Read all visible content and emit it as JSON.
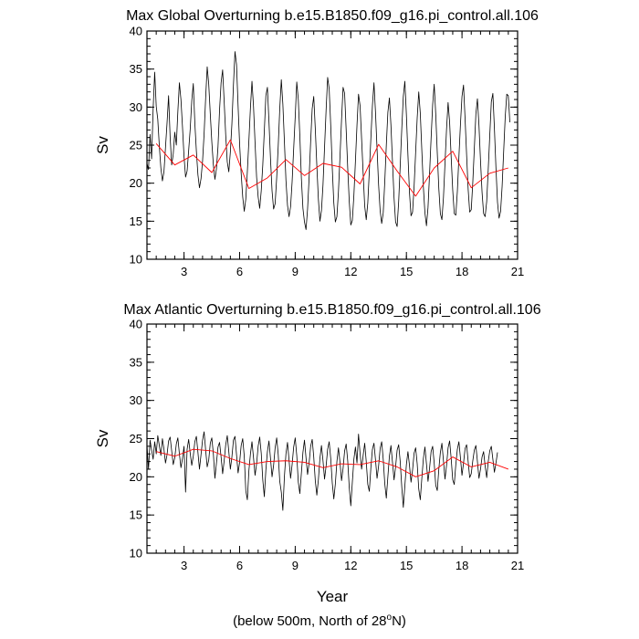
{
  "chart_data": [
    {
      "type": "line",
      "title": "Max Global Overturning b.e15.B1850.f09_g16.pi_control.all.106",
      "xlabel": "",
      "ylabel": "Sv",
      "xlim": [
        1,
        21
      ],
      "ylim": [
        10,
        40
      ],
      "xticks": [
        3,
        6,
        9,
        12,
        15,
        18,
        21
      ],
      "yticks": [
        10,
        15,
        20,
        25,
        30,
        35,
        40
      ],
      "series": [
        {
          "name": "monthly",
          "color": "#000000",
          "x_start": 1.0,
          "x_step": 0.08333,
          "values": [
            22.6,
            21.8,
            26.4,
            23.2,
            29.8,
            34.6,
            30.1,
            28.4,
            24.9,
            22.0,
            20.3,
            21.5,
            24.7,
            27.9,
            31.5,
            26.1,
            22.4,
            23.8,
            26.7,
            25.0,
            29.4,
            33.2,
            31.0,
            27.4,
            23.5,
            20.8,
            21.6,
            24.3,
            27.1,
            30.8,
            33.1,
            27.9,
            24.2,
            21.1,
            19.4,
            20.6,
            22.9,
            26.5,
            31.2,
            35.3,
            33.0,
            29.1,
            25.4,
            22.4,
            20.5,
            21.9,
            24.8,
            29.6,
            33.2,
            34.9,
            30.7,
            26.3,
            22.8,
            21.5,
            24.1,
            27.8,
            32.9,
            37.3,
            35.6,
            30.2,
            25.1,
            21.3,
            18.2,
            16.3,
            17.9,
            21.5,
            25.6,
            29.9,
            33.4,
            30.1,
            25.3,
            20.8,
            18.2,
            16.7,
            19.0,
            22.4,
            26.9,
            31.5,
            32.6,
            28.1,
            23.2,
            19.0,
            16.6,
            17.3,
            20.7,
            24.9,
            29.8,
            33.6,
            30.4,
            25.5,
            20.4,
            17.1,
            15.6,
            16.9,
            20.2,
            24.5,
            28.7,
            33.3,
            31.0,
            26.2,
            20.6,
            16.7,
            14.9,
            13.9,
            16.6,
            20.7,
            25.5,
            29.8,
            31.4,
            27.2,
            22.3,
            17.9,
            15.0,
            16.4,
            19.8,
            24.7,
            29.6,
            33.9,
            32.4,
            27.6,
            22.0,
            17.4,
            14.9,
            15.6,
            18.9,
            23.5,
            28.3,
            32.6,
            31.8,
            27.0,
            22.0,
            17.6,
            14.5,
            15.1,
            18.4,
            22.9,
            27.6,
            31.7,
            30.2,
            25.8,
            21.3,
            17.0,
            15.2,
            17.4,
            21.6,
            25.9,
            30.2,
            33.2,
            29.3,
            24.5,
            19.8,
            16.4,
            14.7,
            16.1,
            20.2,
            25.0,
            29.3,
            31.2,
            27.6,
            22.8,
            18.1,
            14.9,
            14.3,
            17.6,
            22.3,
            27.1,
            31.4,
            33.4,
            29.0,
            23.7,
            18.8,
            15.7,
            16.2,
            19.6,
            24.1,
            28.6,
            32.0,
            29.2,
            24.3,
            19.5,
            16.1,
            14.4,
            16.8,
            21.2,
            25.9,
            30.3,
            33.0,
            29.1,
            24.0,
            19.3,
            16.0,
            15.2,
            18.1,
            22.6,
            27.1,
            30.6,
            28.0,
            23.4,
            19.1,
            16.0,
            15.8,
            18.9,
            23.4,
            27.7,
            31.4,
            32.9,
            28.5,
            23.7,
            19.2,
            16.2,
            16.5,
            20.1,
            24.6,
            29.1,
            31.1,
            27.6,
            22.9,
            18.8,
            16.0,
            15.6,
            17.6,
            21.8,
            26.3,
            30.7,
            31.8,
            27.2,
            22.0,
            17.5,
            15.4,
            16.3,
            19.6,
            24.2,
            28.7,
            31.7,
            31.5,
            28.0
          ]
        },
        {
          "name": "annual mean",
          "color": "#ff0000",
          "x": [
            1.5,
            2.5,
            3.5,
            4.5,
            5.5,
            6.5,
            7.5,
            8.5,
            9.5,
            10.5,
            11.5,
            12.5,
            13.5,
            14.5,
            15.5,
            16.5,
            17.5,
            18.5,
            19.5,
            20.5
          ],
          "values": [
            25.2,
            22.4,
            23.7,
            21.4,
            25.7,
            19.3,
            20.7,
            23.1,
            21.0,
            22.6,
            22.1,
            19.9,
            25.1,
            21.6,
            18.3,
            22.0,
            24.2,
            19.4,
            21.3,
            22.0
          ]
        }
      ]
    },
    {
      "type": "line",
      "title": "Max Atlantic Overturning b.e15.B1850.f09_g16.pi_control.all.106",
      "xlabel": "Year",
      "ylabel": "Sv",
      "xlim": [
        1,
        21
      ],
      "ylim": [
        10,
        40
      ],
      "xticks": [
        3,
        6,
        9,
        12,
        15,
        18,
        21
      ],
      "yticks": [
        10,
        15,
        20,
        25,
        30,
        35,
        40
      ],
      "series": [
        {
          "name": "monthly",
          "color": "#000000",
          "x_start": 1.0,
          "x_step": 0.08333,
          "values": [
            24.2,
            21.0,
            24.8,
            23.5,
            22.3,
            24.6,
            23.0,
            25.4,
            24.1,
            22.8,
            25.0,
            23.6,
            21.8,
            22.9,
            24.7,
            25.2,
            23.4,
            21.6,
            22.5,
            24.3,
            25.1,
            23.0,
            21.2,
            22.4,
            24.0,
            18.0,
            23.6,
            24.9,
            23.1,
            21.5,
            22.7,
            24.6,
            25.3,
            23.2,
            21.0,
            22.9,
            24.8,
            25.9,
            23.5,
            21.3,
            22.2,
            24.4,
            25.1,
            23.0,
            19.8,
            21.8,
            23.9,
            24.5,
            22.6,
            20.4,
            22.1,
            24.2,
            25.4,
            23.3,
            21.0,
            22.6,
            24.8,
            25.3,
            22.9,
            20.5,
            21.9,
            24.1,
            25.0,
            22.7,
            18.2,
            17.0,
            20.8,
            23.0,
            24.6,
            22.5,
            20.2,
            21.7,
            24.0,
            25.2,
            23.1,
            19.6,
            17.4,
            20.9,
            23.3,
            24.7,
            22.4,
            20.0,
            21.5,
            23.8,
            25.1,
            22.9,
            19.4,
            18.0,
            15.6,
            20.0,
            23.0,
            24.5,
            22.2,
            19.8,
            21.6,
            23.9,
            25.1,
            22.8,
            19.3,
            17.8,
            20.5,
            23.2,
            24.8,
            22.5,
            20.3,
            21.8,
            24.0,
            24.9,
            22.6,
            19.5,
            17.6,
            19.6,
            22.4,
            24.1,
            22.1,
            19.7,
            21.4,
            23.6,
            24.6,
            22.4,
            19.2,
            17.1,
            19.1,
            22.0,
            23.8,
            21.9,
            19.5,
            21.1,
            23.4,
            24.3,
            22.1,
            18.6,
            16.2,
            19.3,
            22.3,
            23.9,
            21.8,
            25.6,
            23.1,
            21.0,
            22.8,
            24.4,
            22.0,
            19.0,
            18.1,
            21.2,
            23.6,
            24.4,
            22.2,
            19.8,
            21.4,
            23.7,
            24.6,
            22.3,
            19.1,
            17.2,
            20.0,
            22.7,
            24.1,
            21.9,
            19.6,
            21.3,
            23.5,
            24.2,
            22.0,
            18.7,
            16.0,
            18.8,
            21.6,
            23.3,
            21.5,
            19.3,
            20.9,
            23.1,
            23.8,
            21.7,
            18.4,
            17.0,
            19.8,
            22.4,
            23.9,
            21.7,
            19.4,
            21.1,
            23.3,
            24.0,
            21.8,
            18.9,
            18.2,
            21.0,
            23.2,
            24.4,
            22.1,
            19.7,
            21.5,
            23.8,
            24.7,
            22.4,
            19.6,
            19.0,
            21.6,
            23.6,
            24.6,
            22.5,
            20.2,
            21.8,
            23.7,
            24.2,
            22.0,
            19.9,
            20.4,
            22.1,
            23.5,
            24.1,
            22.0,
            19.8,
            21.0,
            22.6,
            23.3,
            21.4,
            19.9,
            22.0,
            23.4,
            24.0,
            22.3,
            20.6,
            21.8,
            23.2
          ]
        },
        {
          "name": "annual mean",
          "color": "#ff0000",
          "x": [
            1.5,
            2.5,
            3.5,
            4.5,
            5.5,
            6.5,
            7.5,
            8.5,
            9.5,
            10.5,
            11.5,
            12.5,
            13.5,
            14.5,
            15.5,
            16.5,
            17.5,
            18.5,
            19.5,
            20.5
          ],
          "values": [
            23.3,
            22.7,
            23.6,
            23.4,
            22.4,
            21.6,
            22.0,
            22.1,
            21.9,
            21.2,
            21.7,
            21.6,
            22.1,
            21.3,
            20.0,
            20.8,
            22.6,
            21.3,
            21.9,
            21.0
          ]
        }
      ]
    }
  ],
  "footnote": {
    "prefix": "(below 500m, North of 28",
    "superscript": "o",
    "suffix": "N)"
  }
}
